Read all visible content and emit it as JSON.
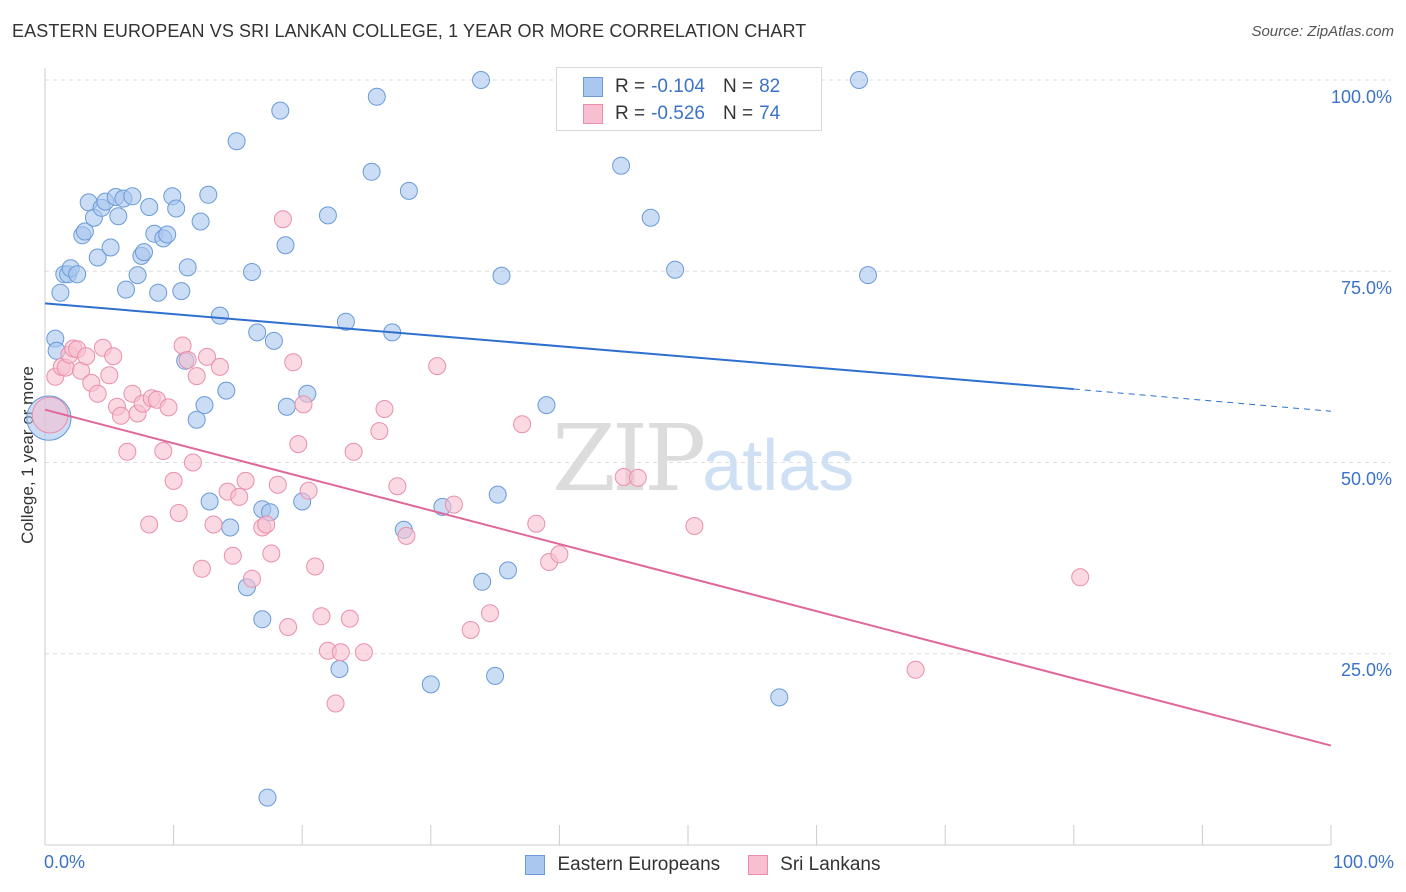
{
  "title": "EASTERN EUROPEAN VS SRI LANKAN COLLEGE, 1 YEAR OR MORE CORRELATION CHART",
  "source": "Source: ZipAtlas.com",
  "watermark": {
    "zip": "ZIP",
    "atlas": "atlas"
  },
  "legend_top": {
    "rows": [
      {
        "r_label": "R =",
        "r_value": "-0.104",
        "n_label": "N =",
        "n_value": "82"
      },
      {
        "r_label": "R =",
        "r_value": "-0.526",
        "n_label": "N =",
        "n_value": "74"
      }
    ]
  },
  "colors": {
    "blue_fill": "#a9c7ef",
    "blue_stroke": "#6a9ad8",
    "blue_line": "#2e6fd0",
    "pink_fill": "#f7bfd0",
    "pink_stroke": "#ea8fab",
    "pink_line": "#e0679a",
    "grid": "#dddddd",
    "axis_label": "#3b73c8"
  },
  "chart_data": {
    "type": "scatter",
    "title": "EASTERN EUROPEAN VS SRI LANKAN COLLEGE, 1 YEAR OR MORE CORRELATION CHART",
    "xlabel": "",
    "ylabel": "College, 1 year or more",
    "xlim": [
      0,
      100
    ],
    "ylim": [
      0,
      104
    ],
    "x_tick_labels": [
      "0.0%",
      "100.0%"
    ],
    "y_ticks": [
      25,
      50,
      75,
      100
    ],
    "y_tick_labels": [
      "25.0%",
      "50.0%",
      "75.0%",
      "100.0%"
    ],
    "grid": true,
    "legend_position": "bottom",
    "series": [
      {
        "name": "Eastern Europeans",
        "r": -0.104,
        "n": 82,
        "trend": {
          "x0": 0,
          "y0": 70.8,
          "x1": 80,
          "y1": 59.6,
          "dash_to_x": 100,
          "dash_to_y": 56.7
        },
        "points": [
          [
            0.8,
            66.2,
            1
          ],
          [
            0.9,
            64.6,
            1
          ],
          [
            1.2,
            72.2,
            1
          ],
          [
            1.5,
            74.6,
            1
          ],
          [
            1.8,
            74.6,
            1
          ],
          [
            2.0,
            75.4,
            1
          ],
          [
            2.5,
            74.6,
            1
          ],
          [
            2.9,
            79.7,
            1
          ],
          [
            3.1,
            80.2,
            1
          ],
          [
            3.4,
            84.0,
            1
          ],
          [
            3.8,
            82.0,
            1
          ],
          [
            4.1,
            76.8,
            1
          ],
          [
            4.4,
            83.3,
            1
          ],
          [
            4.7,
            84.1,
            1
          ],
          [
            5.1,
            78.1,
            1
          ],
          [
            5.5,
            84.7,
            1
          ],
          [
            5.7,
            82.2,
            1
          ],
          [
            6.1,
            84.5,
            1
          ],
          [
            6.3,
            72.6,
            1
          ],
          [
            6.8,
            84.8,
            1
          ],
          [
            7.2,
            74.5,
            1
          ],
          [
            7.5,
            77.0,
            1
          ],
          [
            7.7,
            77.5,
            1
          ],
          [
            8.1,
            83.4,
            1
          ],
          [
            8.5,
            79.9,
            1
          ],
          [
            8.8,
            72.2,
            1
          ],
          [
            9.2,
            79.3,
            1
          ],
          [
            9.5,
            79.8,
            1
          ],
          [
            9.9,
            84.8,
            1
          ],
          [
            10.2,
            83.2,
            1
          ],
          [
            10.6,
            72.4,
            1
          ],
          [
            10.9,
            63.3,
            1
          ],
          [
            11.1,
            75.5,
            1
          ],
          [
            11.8,
            55.6,
            1
          ],
          [
            12.1,
            81.5,
            1
          ],
          [
            12.4,
            57.5,
            1
          ],
          [
            12.7,
            85.0,
            1
          ],
          [
            12.8,
            44.9,
            1
          ],
          [
            13.6,
            69.2,
            1
          ],
          [
            14.1,
            59.4,
            1
          ],
          [
            14.4,
            41.5,
            1
          ],
          [
            14.9,
            92.0,
            1
          ],
          [
            15.7,
            33.7,
            1
          ],
          [
            16.1,
            74.9,
            1
          ],
          [
            16.5,
            67.0,
            1
          ],
          [
            16.9,
            29.5,
            1
          ],
          [
            16.9,
            43.9,
            1
          ],
          [
            17.3,
            6.2,
            1
          ],
          [
            17.5,
            43.5,
            1
          ],
          [
            17.8,
            65.9,
            1
          ],
          [
            18.3,
            96.0,
            1
          ],
          [
            18.7,
            78.4,
            1
          ],
          [
            18.8,
            57.3,
            1
          ],
          [
            20.0,
            44.9,
            1
          ],
          [
            20.4,
            59.0,
            1
          ],
          [
            22.0,
            82.3,
            1
          ],
          [
            22.9,
            23.0,
            1
          ],
          [
            23.4,
            68.4,
            1
          ],
          [
            25.4,
            88.0,
            1
          ],
          [
            25.8,
            97.8,
            1
          ],
          [
            27.0,
            67.0,
            1
          ],
          [
            27.9,
            41.2,
            1
          ],
          [
            28.3,
            85.5,
            1
          ],
          [
            30.0,
            21.0,
            1
          ],
          [
            30.9,
            44.2,
            1
          ],
          [
            33.9,
            100.0,
            1
          ],
          [
            34.0,
            34.4,
            1
          ],
          [
            35.0,
            22.1,
            1
          ],
          [
            35.2,
            45.8,
            1
          ],
          [
            35.5,
            74.4,
            1
          ],
          [
            36.0,
            35.9,
            1
          ],
          [
            39.0,
            57.5,
            1
          ],
          [
            44.8,
            88.8,
            1
          ],
          [
            47.1,
            82.0,
            1
          ],
          [
            49.0,
            75.2,
            1
          ],
          [
            57.1,
            19.3,
            1
          ],
          [
            63.3,
            100.0,
            1
          ],
          [
            64.0,
            74.5,
            1
          ],
          [
            0.3,
            55.8,
            2.6
          ]
        ]
      },
      {
        "name": "Sri Lankans",
        "r": -0.526,
        "n": 74,
        "trend": {
          "x0": 0,
          "y0": 56.9,
          "x1": 100,
          "y1": 13.0
        },
        "points": [
          [
            0.8,
            61.2,
            1
          ],
          [
            1.3,
            62.5,
            1
          ],
          [
            1.6,
            62.4,
            1
          ],
          [
            1.9,
            64.1,
            1
          ],
          [
            2.2,
            64.9,
            1
          ],
          [
            2.5,
            64.8,
            1
          ],
          [
            2.8,
            62.0,
            1
          ],
          [
            3.2,
            63.9,
            1
          ],
          [
            3.6,
            60.4,
            1
          ],
          [
            4.1,
            59.0,
            1
          ],
          [
            4.5,
            65.0,
            1
          ],
          [
            5.0,
            61.4,
            1
          ],
          [
            5.3,
            63.9,
            1
          ],
          [
            5.6,
            57.3,
            1
          ],
          [
            5.9,
            56.1,
            1
          ],
          [
            6.4,
            51.4,
            1
          ],
          [
            6.8,
            59.0,
            1
          ],
          [
            7.2,
            56.4,
            1
          ],
          [
            7.6,
            57.7,
            1
          ],
          [
            8.1,
            41.9,
            1
          ],
          [
            8.3,
            58.4,
            1
          ],
          [
            8.7,
            58.2,
            1
          ],
          [
            9.2,
            51.5,
            1
          ],
          [
            9.6,
            57.2,
            1
          ],
          [
            10.0,
            47.6,
            1
          ],
          [
            10.4,
            43.4,
            1
          ],
          [
            10.7,
            65.3,
            1
          ],
          [
            11.1,
            63.4,
            1
          ],
          [
            11.5,
            50.0,
            1
          ],
          [
            11.8,
            61.3,
            1
          ],
          [
            12.2,
            36.1,
            1
          ],
          [
            12.6,
            63.8,
            1
          ],
          [
            13.1,
            41.9,
            1
          ],
          [
            13.6,
            62.5,
            1
          ],
          [
            14.2,
            46.2,
            1
          ],
          [
            14.6,
            37.8,
            1
          ],
          [
            15.1,
            45.5,
            1
          ],
          [
            15.6,
            47.6,
            1
          ],
          [
            16.1,
            34.8,
            1
          ],
          [
            16.9,
            41.5,
            1
          ],
          [
            17.2,
            41.9,
            1
          ],
          [
            17.6,
            38.1,
            1
          ],
          [
            18.1,
            47.1,
            1
          ],
          [
            18.5,
            81.8,
            1
          ],
          [
            18.9,
            28.5,
            1
          ],
          [
            19.3,
            63.1,
            1
          ],
          [
            19.7,
            52.4,
            1
          ],
          [
            20.1,
            57.6,
            1
          ],
          [
            20.5,
            46.3,
            1
          ],
          [
            21.0,
            36.4,
            1
          ],
          [
            21.5,
            29.9,
            1
          ],
          [
            22.0,
            25.4,
            1
          ],
          [
            22.6,
            18.5,
            1
          ],
          [
            23.0,
            25.2,
            1
          ],
          [
            23.7,
            29.6,
            1
          ],
          [
            24.0,
            51.4,
            1
          ],
          [
            24.8,
            25.2,
            1
          ],
          [
            26.0,
            54.1,
            1
          ],
          [
            26.4,
            57.0,
            1
          ],
          [
            27.4,
            46.9,
            1
          ],
          [
            28.1,
            40.4,
            1
          ],
          [
            30.5,
            62.6,
            1
          ],
          [
            31.8,
            44.5,
            1
          ],
          [
            33.1,
            28.1,
            1
          ],
          [
            34.6,
            30.3,
            1
          ],
          [
            37.1,
            55.0,
            1
          ],
          [
            38.2,
            42.0,
            1
          ],
          [
            39.2,
            37.0,
            1
          ],
          [
            40.0,
            38.0,
            1
          ],
          [
            45.0,
            48.1,
            1
          ],
          [
            46.1,
            48.0,
            1
          ],
          [
            50.5,
            41.7,
            1
          ],
          [
            80.5,
            35.0,
            1
          ],
          [
            67.7,
            22.9,
            1
          ],
          [
            0.4,
            56.2,
            2.1
          ]
        ]
      }
    ]
  }
}
